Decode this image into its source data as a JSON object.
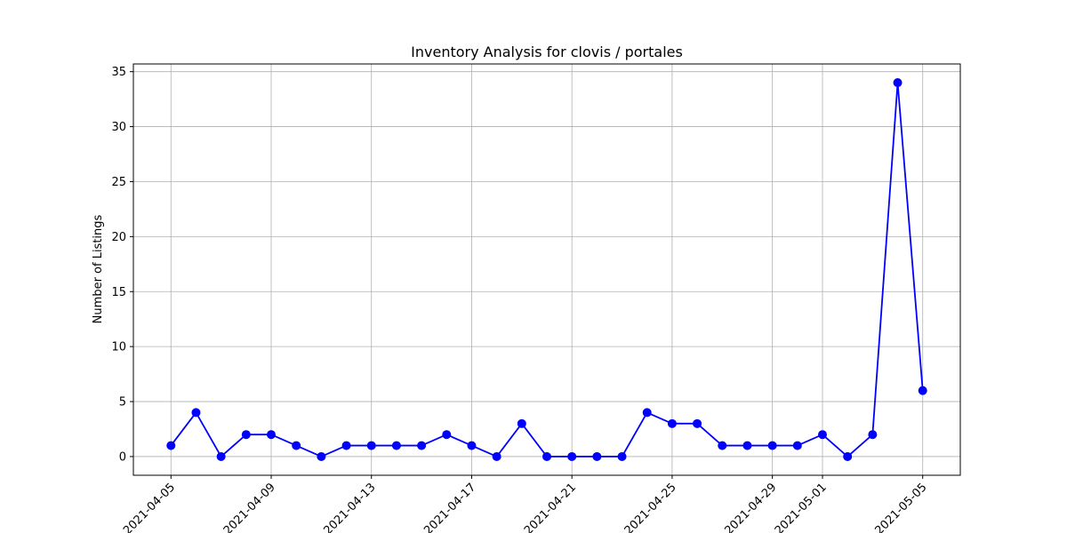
{
  "chart_data": {
    "type": "line",
    "title": "Inventory Analysis for clovis / portales",
    "xlabel": "",
    "ylabel": "Number of Listings",
    "x": [
      "2021-04-05",
      "2021-04-06",
      "2021-04-07",
      "2021-04-08",
      "2021-04-09",
      "2021-04-10",
      "2021-04-11",
      "2021-04-12",
      "2021-04-13",
      "2021-04-14",
      "2021-04-15",
      "2021-04-16",
      "2021-04-17",
      "2021-04-18",
      "2021-04-19",
      "2021-04-20",
      "2021-04-21",
      "2021-04-22",
      "2021-04-23",
      "2021-04-24",
      "2021-04-25",
      "2021-04-26",
      "2021-04-27",
      "2021-04-28",
      "2021-04-29",
      "2021-04-30",
      "2021-05-01",
      "2021-05-02",
      "2021-05-03",
      "2021-05-04",
      "2021-05-05"
    ],
    "series": [
      {
        "values": [
          1,
          4,
          0,
          2,
          2,
          1,
          0,
          1,
          1,
          1,
          1,
          2,
          1,
          0,
          3,
          0,
          0,
          0,
          0,
          4,
          3,
          3,
          1,
          1,
          1,
          1,
          2,
          0,
          2,
          34,
          6
        ]
      }
    ],
    "xticks": [
      "2021-04-05",
      "2021-04-09",
      "2021-04-13",
      "2021-04-17",
      "2021-04-21",
      "2021-04-25",
      "2021-04-29",
      "2021-05-01",
      "2021-05-05"
    ],
    "yticks": [
      0,
      5,
      10,
      15,
      20,
      25,
      30,
      35
    ],
    "ylim": [
      -1.7,
      35.7
    ],
    "xlim": [
      "2021-04-03 12:00",
      "2021-05-06 12:00"
    ],
    "grid": true,
    "line_color": "#0000ff",
    "marker": "circle"
  }
}
